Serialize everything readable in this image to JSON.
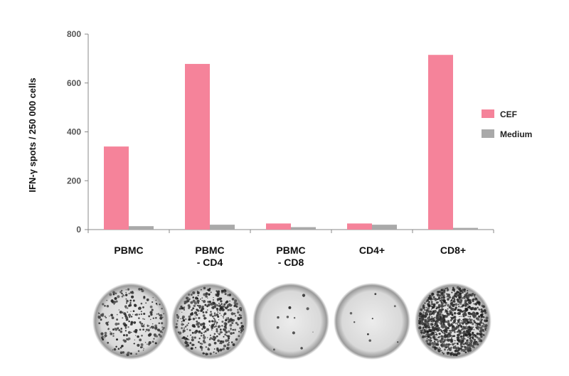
{
  "chart_data": {
    "type": "bar",
    "ylabel": "IFN-γ spots / 250 000 cells",
    "xlabel": "",
    "ylim": [
      0,
      800
    ],
    "yticks": [
      0,
      200,
      400,
      600,
      800
    ],
    "grid": false,
    "legend_position": "right",
    "categories": [
      [
        "PBMC"
      ],
      [
        "PBMC",
        "- CD4"
      ],
      [
        "PBMC",
        "- CD8"
      ],
      [
        "CD4+"
      ],
      [
        "CD8+"
      ]
    ],
    "series": [
      {
        "name": "CEF",
        "color": "#f5839a",
        "values": [
          340,
          678,
          25,
          25,
          715
        ]
      },
      {
        "name": "Medium",
        "color": "#a9a9a9",
        "values": [
          14,
          20,
          10,
          20,
          7
        ]
      }
    ],
    "wells": [
      {
        "density": "medium-high",
        "spot_count": 260
      },
      {
        "density": "high",
        "spot_count": 430
      },
      {
        "density": "very-low",
        "spot_count": 12
      },
      {
        "density": "very-low",
        "spot_count": 8
      },
      {
        "density": "very-high",
        "spot_count": 1100
      }
    ]
  }
}
